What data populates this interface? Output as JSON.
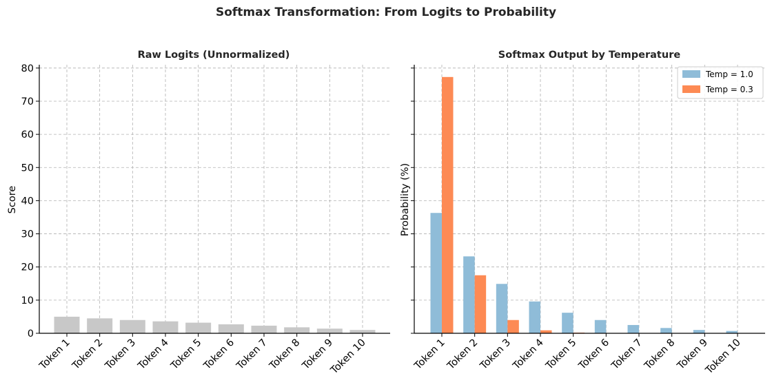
{
  "figure": {
    "title": "Softmax Transformation: From Logits to Probability"
  },
  "chart_data": [
    {
      "type": "bar",
      "title": "Raw Logits (Unnormalized)",
      "xlabel": "",
      "ylabel": "Score",
      "categories": [
        "Token 1",
        "Token 2",
        "Token 3",
        "Token 4",
        "Token 5",
        "Token 6",
        "Token 7",
        "Token 8",
        "Token 9",
        "Token 10"
      ],
      "values": [
        5.0,
        4.5,
        4.0,
        3.6,
        3.2,
        2.7,
        2.3,
        1.8,
        1.4,
        1.0
      ],
      "ylim": [
        0,
        81
      ],
      "yticks": [
        0,
        10,
        20,
        30,
        40,
        50,
        60,
        70,
        80
      ],
      "grid": true,
      "color": "#c8c8c8"
    },
    {
      "type": "bar",
      "title": "Softmax Output by Temperature",
      "xlabel": "",
      "ylabel": "Probability (%)",
      "categories": [
        "Token 1",
        "Token 2",
        "Token 3",
        "Token 4",
        "Token 5",
        "Token 6",
        "Token 7",
        "Token 8",
        "Token 9",
        "Token 10"
      ],
      "series": [
        {
          "name": "Temp = 1.0",
          "color": "#8fbcd8",
          "values": [
            36.3,
            23.2,
            14.9,
            9.6,
            6.2,
            4.0,
            2.5,
            1.6,
            1.0,
            0.7
          ]
        },
        {
          "name": "Temp = 0.3",
          "color": "#fd8a54",
          "values": [
            77.3,
            17.5,
            4.0,
            0.9,
            0.2,
            0.05,
            0.01,
            0.0,
            0.0,
            0.0
          ]
        }
      ],
      "ylim": [
        0,
        81
      ],
      "yticks": [
        0,
        10,
        20,
        30,
        40,
        50,
        60,
        70,
        80
      ],
      "show_tick_labels": false,
      "grid": true,
      "legend": "top-right"
    }
  ]
}
